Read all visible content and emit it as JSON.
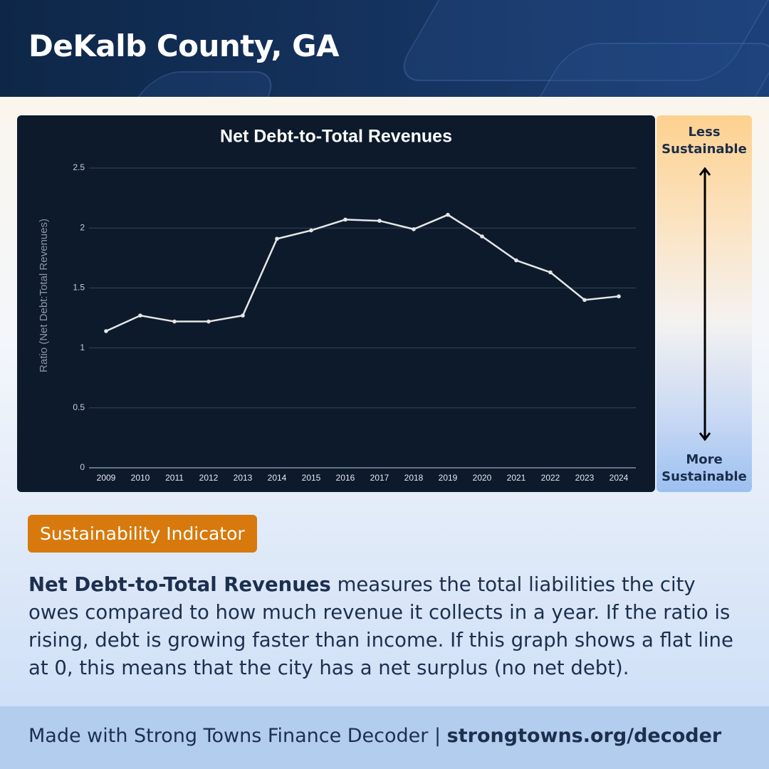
{
  "header": {
    "title": "DeKalb County, GA"
  },
  "chart_data": {
    "type": "line",
    "title": "Net Debt-to-Total Revenues",
    "y_label": "Ratio (Net Debt:Total Revenues)",
    "categories": [
      "2009",
      "2010",
      "2011",
      "2012",
      "2013",
      "2014",
      "2015",
      "2016",
      "2017",
      "2018",
      "2019",
      "2020",
      "2021",
      "2022",
      "2023",
      "2024"
    ],
    "series": [
      {
        "name": "Net Debt-to-Total Revenues",
        "color": "#e6e6e6",
        "values": [
          1.14,
          1.27,
          1.22,
          1.22,
          1.27,
          1.91,
          1.98,
          2.07,
          2.06,
          1.99,
          2.11,
          1.93,
          1.73,
          1.63,
          1.4,
          1.43
        ]
      }
    ],
    "ylim": [
      0,
      2.5
    ],
    "yticks": [
      0,
      0.5,
      1,
      1.5,
      2,
      2.5
    ],
    "grid": true
  },
  "scale": {
    "top": "Less Sustainable",
    "bottom": "More Sustainable"
  },
  "badge": "Sustainability Indicator",
  "description": {
    "term": "Net Debt-to-Total Revenues",
    "text": "measures the total liabilities the city owes compared to how much revenue it collects in a year. If the ratio is rising, debt is growing faster than income. If this graph shows a flat line at 0, this means that the city has a net surplus (no net debt)."
  },
  "footer": {
    "text": "Made with Strong Towns Finance Decoder |",
    "link": "strongtowns.org/decoder"
  }
}
